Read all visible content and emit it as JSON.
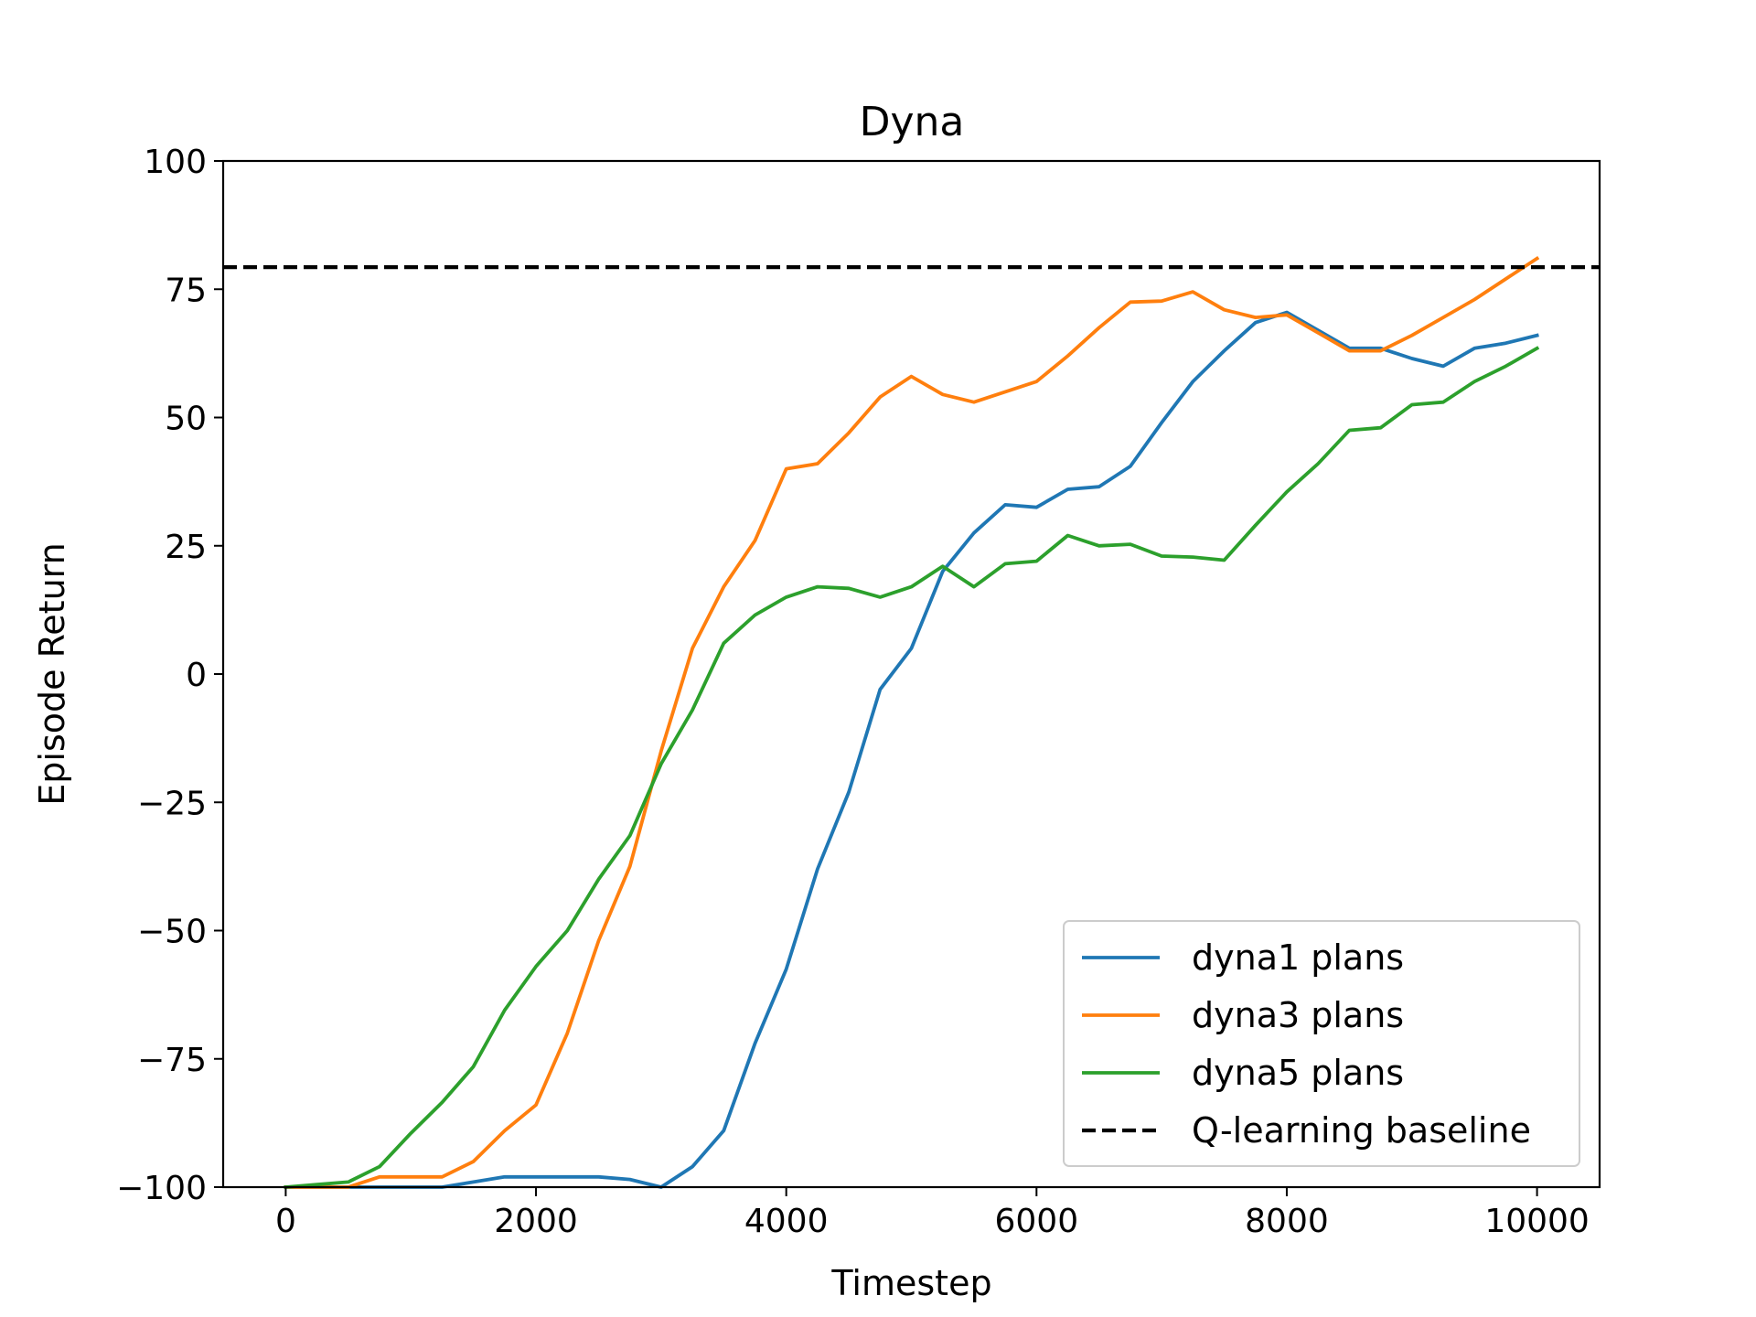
{
  "chart_data": {
    "type": "line",
    "title": "Dyna",
    "xlabel": "Timestep",
    "ylabel": "Episode Return",
    "xlim": [
      -500,
      10500
    ],
    "ylim": [
      -100,
      100
    ],
    "xticks": [
      0,
      2000,
      4000,
      6000,
      8000,
      10000
    ],
    "yticks": [
      -100,
      -75,
      -50,
      -25,
      0,
      25,
      50,
      75,
      100
    ],
    "xtick_labels": [
      "0",
      "2000",
      "4000",
      "6000",
      "8000",
      "10000"
    ],
    "ytick_labels": [
      "−100",
      "−75",
      "−50",
      "−25",
      "0",
      "25",
      "50",
      "75",
      "100"
    ],
    "grid": false,
    "legend_position": "lower right",
    "x": [
      0,
      250,
      500,
      750,
      1000,
      1250,
      1500,
      1750,
      2000,
      2250,
      2500,
      2750,
      3000,
      3250,
      3500,
      3750,
      4000,
      4250,
      4500,
      4750,
      5000,
      5250,
      5500,
      5750,
      6000,
      6250,
      6500,
      6750,
      7000,
      7250,
      7500,
      7750,
      8000,
      8250,
      8500,
      8750,
      9000,
      9250,
      9500,
      9750,
      10000
    ],
    "series": [
      {
        "name": "dyna1 plans",
        "color": "#1f77b4",
        "dashed": false,
        "values": [
          -100,
          -100,
          -100,
          -100,
          -100,
          -100,
          -99,
          -98,
          -98,
          -98,
          -98,
          -98.5,
          -100,
          -96,
          -89,
          -72,
          -57.5,
          -38,
          -23,
          -3,
          5,
          20,
          27.5,
          33,
          32.5,
          36,
          36.5,
          40.5,
          49,
          57,
          63,
          68.5,
          70.5,
          67,
          63.5,
          63.5,
          61.5,
          60,
          63.5,
          64.5,
          66
        ]
      },
      {
        "name": "dyna3 plans",
        "color": "#ff7f0e",
        "dashed": false,
        "values": [
          -100,
          -100,
          -100,
          -98,
          -98,
          -98,
          -95,
          -89,
          -84,
          -70,
          -52,
          -37.5,
          -15,
          5,
          17,
          26,
          40,
          41,
          47,
          54,
          58,
          54.5,
          53,
          55,
          57,
          62,
          67.5,
          72.5,
          72.7,
          74.5,
          71,
          69.5,
          70,
          66.5,
          63,
          63,
          66,
          69.5,
          73,
          77,
          81
        ]
      },
      {
        "name": "dyna5 plans",
        "color": "#2ca02c",
        "dashed": false,
        "values": [
          -100,
          -99.5,
          -99,
          -96,
          -89.5,
          -83.5,
          -76.5,
          -65.5,
          -57,
          -50,
          -40,
          -31.5,
          -17.5,
          -7,
          6,
          11.5,
          15,
          17,
          16.7,
          15,
          17,
          21,
          17,
          21.5,
          22,
          27,
          25,
          25.3,
          23,
          22.8,
          22.2,
          29,
          35.5,
          41,
          47.5,
          48,
          52.5,
          53,
          57,
          60,
          63.5
        ]
      },
      {
        "name": "Q-learning baseline",
        "color": "#000000",
        "dashed": true,
        "x": [
          -500,
          10500
        ],
        "values": [
          79.3,
          79.3
        ]
      }
    ]
  }
}
